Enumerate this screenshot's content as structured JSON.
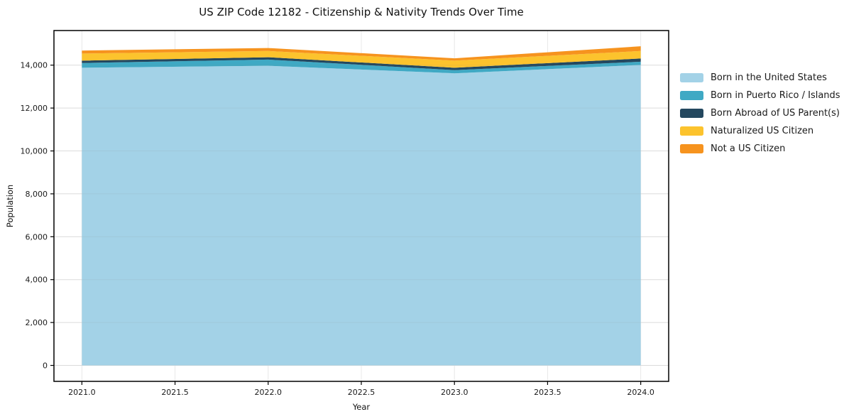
{
  "chart_data": {
    "type": "area",
    "stacked": true,
    "title": "US ZIP Code 12182 - Citizenship & Nativity Trends Over Time",
    "xlabel": "Year",
    "ylabel": "Population",
    "x": [
      2021.0,
      2022.0,
      2023.0,
      2024.0
    ],
    "xlim": [
      2020.85,
      2024.15
    ],
    "ylim": [
      -744,
      15614
    ],
    "x_ticks": [
      "2021.0",
      "2021.5",
      "2022.0",
      "2022.5",
      "2023.0",
      "2023.5",
      "2024.0"
    ],
    "y_ticks": [
      "0",
      "2,000",
      "4,000",
      "6,000",
      "8,000",
      "10,000",
      "12,000",
      "14,000"
    ],
    "grid": true,
    "legend_position": "outside-right",
    "series": [
      {
        "name": "Born in the United States",
        "color": "#a3d2e7",
        "values": [
          13880,
          13970,
          13620,
          14010
        ]
      },
      {
        "name": "Born in Puerto Rico / Islands",
        "color": "#3fa9c4",
        "values": [
          220,
          290,
          150,
          150
        ]
      },
      {
        "name": "Born Abroad of US Parent(s)",
        "color": "#24485f",
        "values": [
          110,
          110,
          110,
          150
        ]
      },
      {
        "name": "Naturalized US Citizen",
        "color": "#fcc32d",
        "values": [
          330,
          290,
          330,
          350
        ]
      },
      {
        "name": "Not a US Citizen",
        "color": "#f6931e",
        "values": [
          140,
          140,
          110,
          220
        ]
      }
    ],
    "colors": {
      "grid": "#e8e8e8",
      "spine": "#000000",
      "tick_text": "#1a1a1a"
    }
  }
}
